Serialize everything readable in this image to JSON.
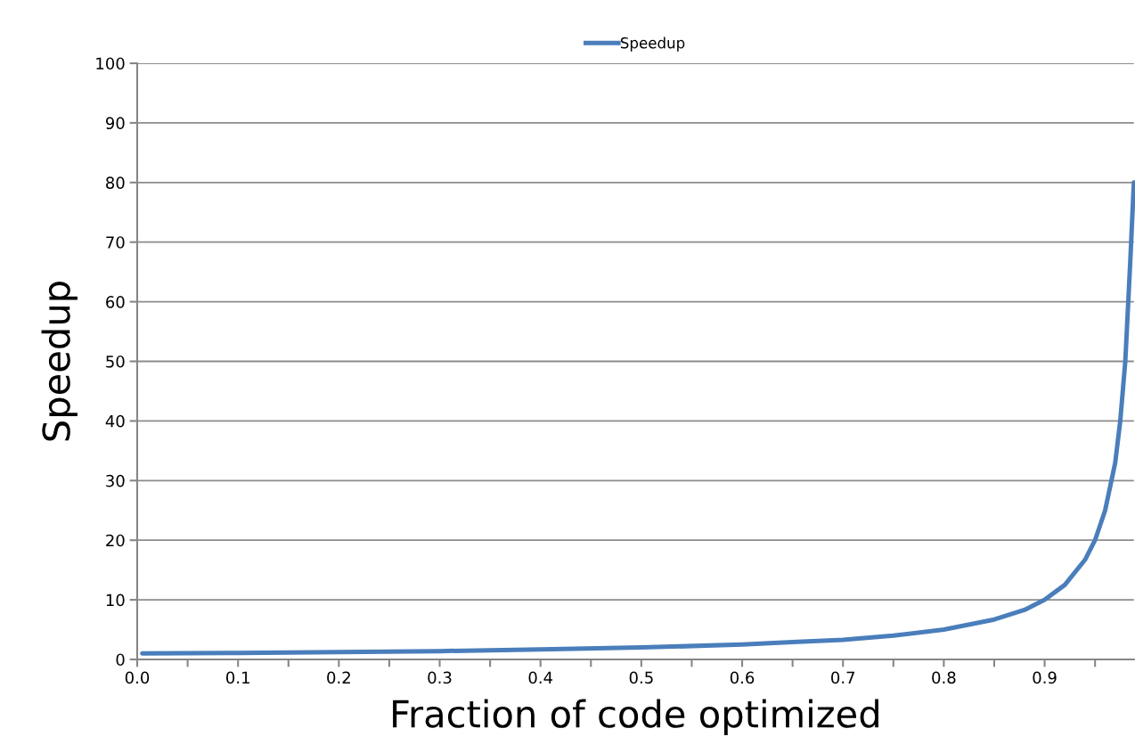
{
  "chart_data": {
    "type": "line",
    "xlabel": "Fraction of code optimized",
    "ylabel": "Speedup",
    "x": [
      0.005,
      0.1,
      0.2,
      0.3,
      0.4,
      0.5,
      0.6,
      0.65,
      0.7,
      0.75,
      0.8,
      0.85,
      0.88,
      0.9,
      0.92,
      0.94,
      0.95,
      0.96,
      0.97,
      0.975,
      0.98,
      0.985,
      0.9885
    ],
    "series": [
      {
        "name": "Speedup",
        "color": "#4a7ebb",
        "values": [
          1.0,
          1.1,
          1.25,
          1.4,
          1.7,
          2.0,
          2.5,
          2.9,
          3.3,
          4.0,
          5.0,
          6.7,
          8.3,
          10,
          12.5,
          16.7,
          20,
          25,
          33,
          40,
          50,
          67,
          80
        ]
      }
    ],
    "xlim": [
      0,
      0.9885
    ],
    "xticks": [
      {
        "value": 0,
        "label": "0.0"
      },
      {
        "value": 0.05,
        "label": null
      },
      0.1,
      {
        "value": 0.15,
        "label": null
      },
      0.2,
      {
        "value": 0.25,
        "label": null
      },
      0.3,
      {
        "value": 0.35,
        "label": null
      },
      0.4,
      {
        "value": 0.45,
        "label": null
      },
      0.5,
      {
        "value": 0.55,
        "label": null
      },
      0.6,
      {
        "value": 0.65,
        "label": null
      },
      0.7,
      {
        "value": 0.75,
        "label": null
      },
      0.8,
      {
        "value": 0.85,
        "label": null
      },
      0.9,
      {
        "value": 0.95,
        "label": null
      }
    ],
    "ylim": [
      0,
      100
    ],
    "yticks": [
      0,
      10,
      20,
      30,
      40,
      50,
      60,
      70,
      80,
      90,
      100
    ],
    "grid": "y",
    "legend": "top",
    "marker": "none",
    "line_style": "solid"
  }
}
